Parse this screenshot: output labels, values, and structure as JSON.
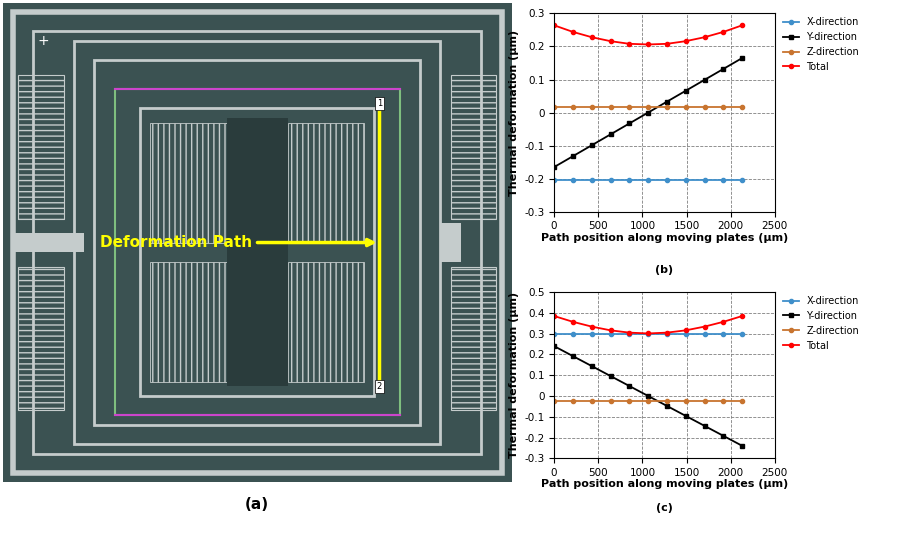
{
  "chart_data": [
    {
      "type": "line",
      "caption": "(b)",
      "xlabel": "Path position along moving plates (µm)",
      "ylabel": "Thermal deformation (µm)",
      "x": [
        0,
        213,
        426,
        639,
        852,
        1065,
        1278,
        1491,
        1704,
        1917,
        2130
      ],
      "series": [
        {
          "name": "X-direction",
          "color": "#3f8fca",
          "marker": "o",
          "values": [
            -0.205,
            -0.205,
            -0.205,
            -0.205,
            -0.205,
            -0.205,
            -0.205,
            -0.205,
            -0.205,
            -0.205,
            -0.205
          ]
        },
        {
          "name": "Y-direction",
          "color": "#000000",
          "marker": "s",
          "values": [
            -0.165,
            -0.132,
            -0.099,
            -0.066,
            -0.033,
            0.0,
            0.033,
            0.066,
            0.099,
            0.132,
            0.165
          ]
        },
        {
          "name": "Z-direction",
          "color": "#c8742f",
          "marker": "o",
          "values": [
            0.017,
            0.017,
            0.017,
            0.017,
            0.017,
            0.017,
            0.017,
            0.017,
            0.017,
            0.017,
            0.017
          ]
        },
        {
          "name": "Total",
          "color": "#ff0000",
          "marker": "o",
          "values": [
            0.264,
            0.244,
            0.228,
            0.216,
            0.208,
            0.206,
            0.208,
            0.216,
            0.228,
            0.244,
            0.264
          ]
        }
      ],
      "xlim": [
        0,
        2500
      ],
      "xticks": [
        0,
        500,
        1000,
        1500,
        2000,
        2500
      ],
      "ylim": [
        -0.3,
        0.3
      ],
      "yticks": [
        -0.3,
        -0.2,
        -0.1,
        0,
        0.1,
        0.2,
        0.3
      ],
      "grid": true,
      "legend": "upper left"
    },
    {
      "type": "line",
      "caption": "(c)",
      "xlabel": "Path position along moving plates (µm)",
      "ylabel": "Thermal deformation (µm)",
      "x": [
        0,
        213,
        426,
        639,
        852,
        1065,
        1278,
        1491,
        1704,
        1917,
        2130
      ],
      "series": [
        {
          "name": "X-direction",
          "color": "#3f8fca",
          "marker": "o",
          "values": [
            0.3,
            0.3,
            0.3,
            0.3,
            0.3,
            0.3,
            0.3,
            0.3,
            0.3,
            0.3,
            0.3
          ]
        },
        {
          "name": "Y-direction",
          "color": "#000000",
          "marker": "s",
          "values": [
            0.24,
            0.192,
            0.144,
            0.096,
            0.048,
            0.0,
            -0.048,
            -0.096,
            -0.144,
            -0.192,
            -0.24
          ]
        },
        {
          "name": "Z-direction",
          "color": "#c8742f",
          "marker": "o",
          "values": [
            -0.025,
            -0.025,
            -0.025,
            -0.025,
            -0.025,
            -0.025,
            -0.025,
            -0.025,
            -0.025,
            -0.025,
            -0.025
          ]
        },
        {
          "name": "Total",
          "color": "#ff0000",
          "marker": "o",
          "values": [
            0.385,
            0.357,
            0.334,
            0.316,
            0.305,
            0.301,
            0.305,
            0.316,
            0.334,
            0.357,
            0.385
          ]
        }
      ],
      "xlim": [
        0,
        2500
      ],
      "xticks": [
        0,
        500,
        1000,
        1500,
        2000,
        2500
      ],
      "ylim": [
        -0.3,
        0.5
      ],
      "yticks": [
        -0.3,
        -0.2,
        -0.1,
        0,
        0.1,
        0.2,
        0.3,
        0.4,
        0.5
      ],
      "grid": true,
      "legend": "upper left"
    }
  ],
  "diagram": {
    "caption": "(a)",
    "annotation": "Deformation Path",
    "path_start": "1",
    "path_end": "2",
    "corner_mark": "+"
  }
}
